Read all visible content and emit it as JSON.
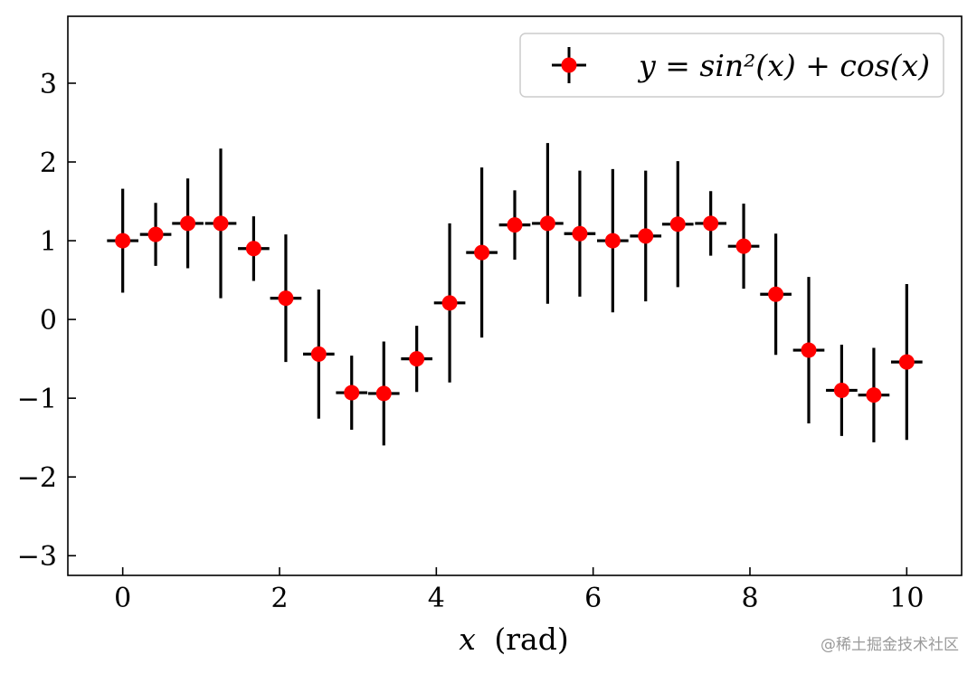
{
  "chart_data": {
    "type": "errorbar",
    "title": "",
    "xlabel_var": "x",
    "xlabel_unit": "(rad)",
    "ylabel": "",
    "xlim": [
      -0.7,
      10.7
    ],
    "ylim": [
      -3.25,
      3.85
    ],
    "x_ticks": [
      0,
      2,
      4,
      6,
      8,
      10
    ],
    "y_ticks": [
      3,
      2,
      1,
      0,
      -1,
      -2,
      -3
    ],
    "x_tick_labels": [
      "0",
      "2",
      "4",
      "6",
      "8",
      "10"
    ],
    "y_tick_labels": [
      "3",
      "2",
      "1",
      "0",
      "−1",
      "−2",
      "−3"
    ],
    "legend": {
      "label": "y = sin²(x) + cos(x)",
      "location": "upper right"
    },
    "series": [
      {
        "name": "y = sin²(x) + cos(x)",
        "marker": "circle",
        "marker_color": "#ff0000",
        "errorbar_color": "#000000",
        "xerr": 0.2,
        "points": [
          {
            "x": 0.0,
            "y": 1.0,
            "yerr": 0.66
          },
          {
            "x": 0.42,
            "y": 1.08,
            "yerr": 0.4
          },
          {
            "x": 0.83,
            "y": 1.22,
            "yerr": 0.57
          },
          {
            "x": 1.25,
            "y": 1.22,
            "yerr": 0.95
          },
          {
            "x": 1.67,
            "y": 0.9,
            "yerr": 0.41
          },
          {
            "x": 2.08,
            "y": 0.27,
            "yerr": 0.81
          },
          {
            "x": 2.5,
            "y": -0.44,
            "yerr": 0.82
          },
          {
            "x": 2.92,
            "y": -0.93,
            "yerr": 0.47
          },
          {
            "x": 3.33,
            "y": -0.94,
            "yerr": 0.66
          },
          {
            "x": 3.75,
            "y": -0.5,
            "yerr": 0.42
          },
          {
            "x": 4.17,
            "y": 0.21,
            "yerr": 1.01
          },
          {
            "x": 4.58,
            "y": 0.85,
            "yerr": 1.08
          },
          {
            "x": 5.0,
            "y": 1.2,
            "yerr": 0.44
          },
          {
            "x": 5.42,
            "y": 1.22,
            "yerr": 1.02
          },
          {
            "x": 5.83,
            "y": 1.09,
            "yerr": 0.8
          },
          {
            "x": 6.25,
            "y": 1.0,
            "yerr": 0.91
          },
          {
            "x": 6.67,
            "y": 1.06,
            "yerr": 0.83
          },
          {
            "x": 7.08,
            "y": 1.21,
            "yerr": 0.8
          },
          {
            "x": 7.5,
            "y": 1.22,
            "yerr": 0.41
          },
          {
            "x": 7.92,
            "y": 0.93,
            "yerr": 0.54
          },
          {
            "x": 8.33,
            "y": 0.32,
            "yerr": 0.77
          },
          {
            "x": 8.75,
            "y": -0.39,
            "yerr": 0.93
          },
          {
            "x": 9.17,
            "y": -0.9,
            "yerr": 0.58
          },
          {
            "x": 9.58,
            "y": -0.96,
            "yerr": 0.6
          },
          {
            "x": 10.0,
            "y": -0.54,
            "yerr": 0.99
          }
        ]
      }
    ]
  },
  "watermark": "@稀土掘金技术社区"
}
